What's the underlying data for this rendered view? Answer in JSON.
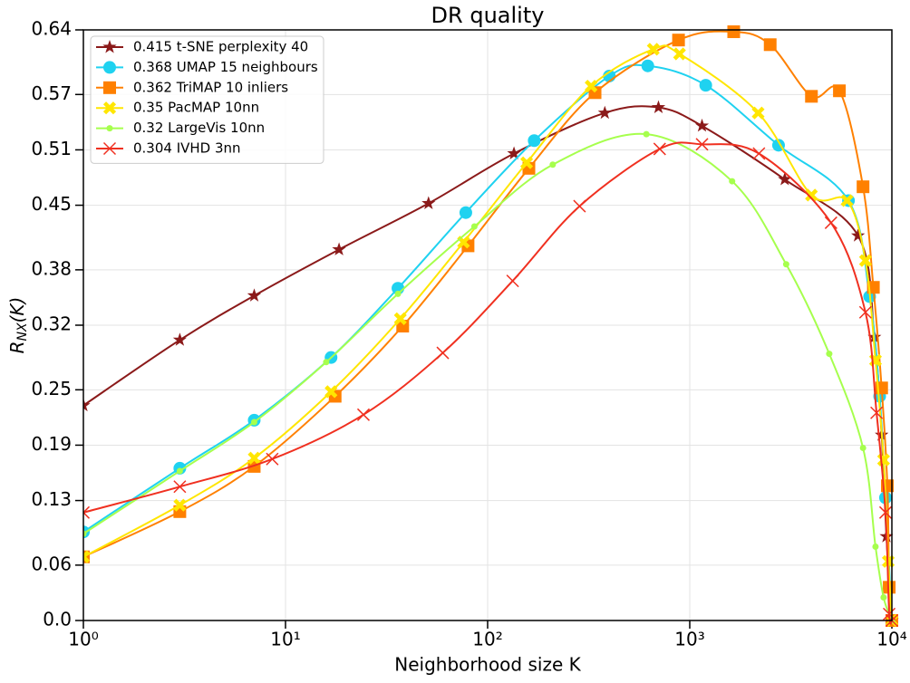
{
  "chart_data": {
    "type": "line",
    "title": "DR quality",
    "x_label": "Neighborhood size K",
    "y_label": [
      "R",
      "NX",
      "(K)"
    ],
    "xscale": "log",
    "xlim": [
      1,
      10000
    ],
    "xticks": [
      {
        "value": 1,
        "label": "10⁰"
      },
      {
        "value": 10,
        "label": "10¹"
      },
      {
        "value": 100,
        "label": "10²"
      },
      {
        "value": 1000,
        "label": "10³"
      },
      {
        "value": 10000,
        "label": "10⁴"
      }
    ],
    "ylim": [
      0,
      0.64
    ],
    "yticks": [
      {
        "value": 0,
        "label": "0.0"
      },
      0.06,
      0.13,
      0.19,
      0.25,
      0.32,
      0.38,
      0.45,
      0.51,
      0.57,
      0.64
    ],
    "grid": true,
    "legend": "upper left",
    "series": [
      {
        "name": "0.415 t-SNE perplexity 40",
        "color": "#8b1a1a",
        "marker": "star",
        "x": [
          1,
          3,
          7,
          18.4,
          51,
          135,
          380,
          700,
          1150,
          2950,
          6800,
          8200,
          8900,
          9400,
          10000
        ],
        "values": [
          0.233,
          0.304,
          0.352,
          0.402,
          0.452,
          0.506,
          0.55,
          0.556,
          0.536,
          0.478,
          0.417,
          0.307,
          0.201,
          0.091,
          0
        ]
      },
      {
        "name": "0.368 UMAP 15 neighbours",
        "color": "#1fd2f0",
        "marker": "circle",
        "x": [
          1,
          3,
          7,
          16.8,
          36,
          78,
          170,
          400,
          620,
          1200,
          2750,
          6100,
          7760,
          8700,
          9300,
          10000
        ],
        "values": [
          0.096,
          0.165,
          0.217,
          0.285,
          0.36,
          0.442,
          0.52,
          0.59,
          0.601,
          0.58,
          0.515,
          0.455,
          0.351,
          0.243,
          0.133,
          0
        ]
      },
      {
        "name": "0.362 TriMAP 10 inliers",
        "color": "#ff8000",
        "marker": "square",
        "x": [
          1,
          3,
          7,
          17.6,
          38,
          80,
          160,
          340,
          880,
          1650,
          2500,
          4000,
          5500,
          7200,
          8100,
          8900,
          9500,
          9700,
          10000
        ],
        "values": [
          0.069,
          0.118,
          0.167,
          0.243,
          0.319,
          0.406,
          0.49,
          0.572,
          0.629,
          0.638,
          0.624,
          0.568,
          0.574,
          0.47,
          0.361,
          0.252,
          0.146,
          0.036,
          0
        ]
      },
      {
        "name": "0.35 PacMAP 10nn",
        "color": "#ffe600",
        "marker": "X",
        "x": [
          1,
          3,
          7,
          16.8,
          37,
          76,
          156,
          325,
          660,
          890,
          2180,
          4000,
          6000,
          7400,
          8300,
          9100,
          9600,
          10000
        ],
        "values": [
          0.069,
          0.125,
          0.176,
          0.248,
          0.327,
          0.41,
          0.496,
          0.579,
          0.619,
          0.614,
          0.55,
          0.461,
          0.455,
          0.39,
          0.282,
          0.174,
          0.064,
          0
        ]
      },
      {
        "name": "0.32 LargeVis 10nn",
        "color": "#a6ff4d",
        "marker": "dot",
        "x": [
          1,
          3,
          7,
          15.9,
          36,
          86,
          210,
          610,
          1620,
          3000,
          4900,
          7200,
          8300,
          9100,
          10000
        ],
        "values": [
          0.094,
          0.162,
          0.215,
          0.28,
          0.354,
          0.427,
          0.494,
          0.527,
          0.476,
          0.386,
          0.289,
          0.187,
          0.08,
          0.025,
          0
        ]
      },
      {
        "name": "0.304 IVHD 3nn",
        "color": "#f03020",
        "marker": "x",
        "x": [
          1,
          3,
          8.6,
          24.3,
          60,
          133,
          285,
          710,
          1150,
          2200,
          5000,
          7400,
          8400,
          9300,
          9700,
          10000
        ],
        "values": [
          0.117,
          0.145,
          0.175,
          0.223,
          0.29,
          0.368,
          0.449,
          0.511,
          0.516,
          0.506,
          0.431,
          0.334,
          0.225,
          0.117,
          0.007,
          0
        ]
      }
    ]
  }
}
